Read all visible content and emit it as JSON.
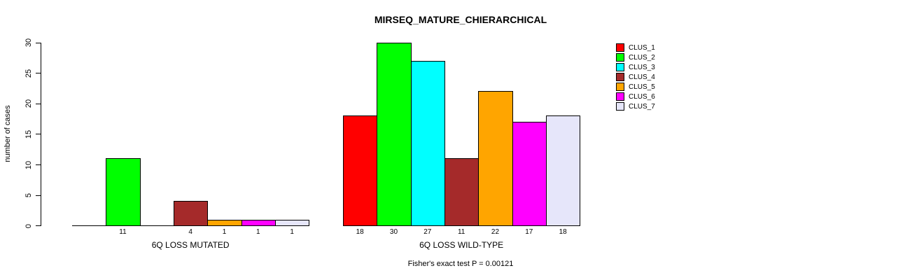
{
  "chart_data": {
    "type": "bar",
    "title": "MIRSEQ_MATURE_CHIERARCHICAL",
    "ylabel": "number of cases",
    "ylim": [
      0,
      30
    ],
    "yticks": [
      0,
      5,
      10,
      15,
      20,
      25,
      30
    ],
    "grid": false,
    "legend_position": "right",
    "clusters": [
      {
        "label": "CLUS_1",
        "color": "#FF0000"
      },
      {
        "label": "CLUS_2",
        "color": "#00FF00"
      },
      {
        "label": "CLUS_3",
        "color": "#00FFFF"
      },
      {
        "label": "CLUS_4",
        "color": "#A52A2A"
      },
      {
        "label": "CLUS_5",
        "color": "#FFA500"
      },
      {
        "label": "CLUS_6",
        "color": "#FF00FF"
      },
      {
        "label": "CLUS_7",
        "color": "#E6E6FA"
      }
    ],
    "groups": [
      {
        "label": "6Q LOSS MUTATED",
        "values": [
          0,
          11,
          0,
          4,
          1,
          1,
          1
        ]
      },
      {
        "label": "6Q LOSS WILD-TYPE",
        "values": [
          18,
          30,
          27,
          11,
          22,
          17,
          18
        ]
      }
    ],
    "value_labels": "nonzero-only",
    "annotation": "Fisher's exact test P = 0.00121"
  }
}
